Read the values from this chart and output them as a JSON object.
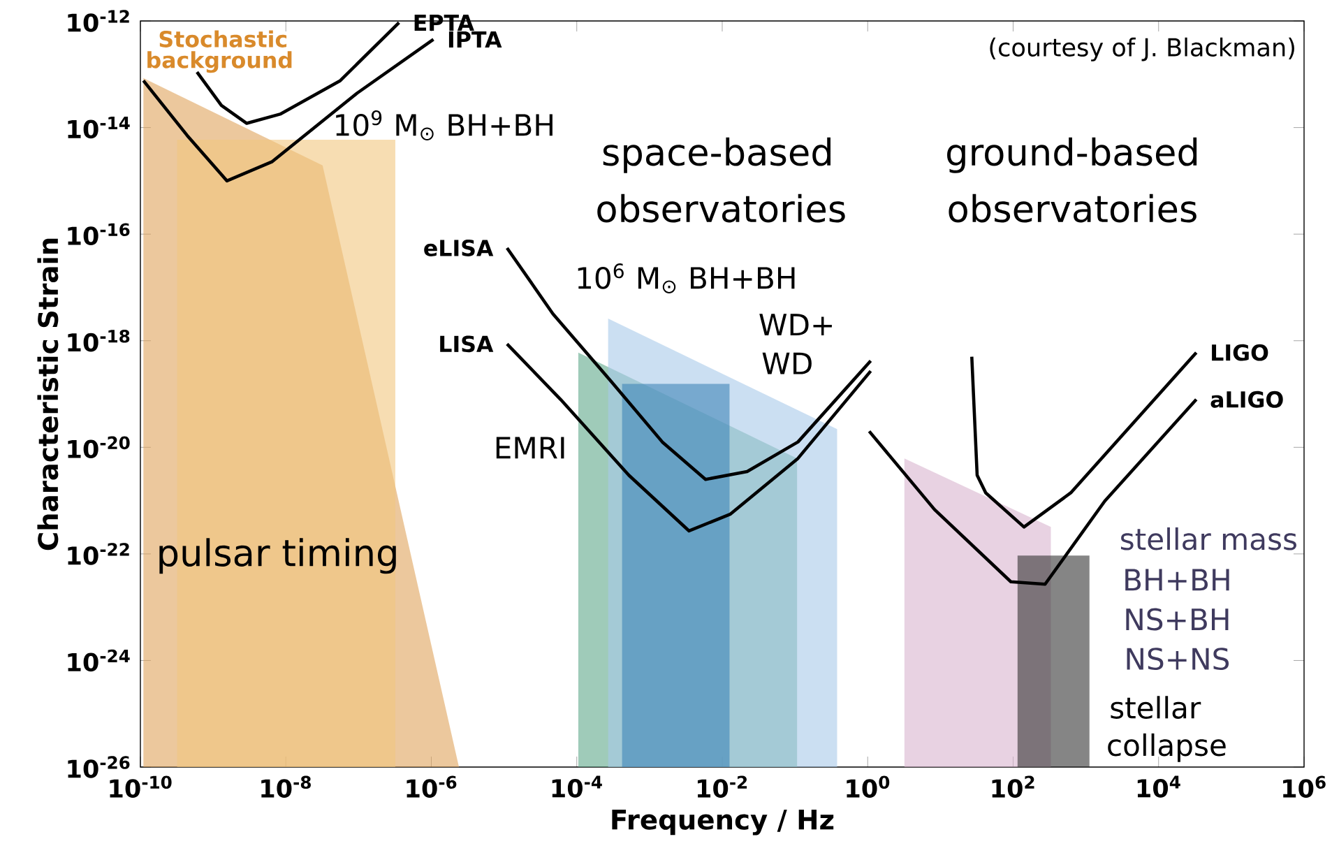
{
  "chart_data": {
    "type": "line",
    "log": "xy",
    "marker": "none",
    "line_style": "solid",
    "xlabel": "Frequency / Hz",
    "ylabel": "Characteristic Strain",
    "xlim": [
      1e-10,
      1000000.0
    ],
    "ylim": [
      1e-26,
      1e-12
    ],
    "xticks": [
      {
        "value": 1e-10,
        "label": "10$^{-10}$"
      },
      {
        "value": 1e-08,
        "label": "10$^{-8}$"
      },
      {
        "value": 1e-06,
        "label": "10$^{-6}$"
      },
      {
        "value": 0.0001,
        "label": "10$^{-4}$"
      },
      {
        "value": 0.01,
        "label": "10$^{-2}$"
      },
      {
        "value": 1,
        "label": "10$^{0}$"
      },
      {
        "value": 100,
        "label": "10$^{2}$"
      },
      {
        "value": 10000,
        "label": "10$^{4}$"
      },
      {
        "value": 1000000,
        "label": "10$^{6}$"
      }
    ],
    "yticks": [
      {
        "value": 1e-26,
        "label": "10$^{-26}$"
      },
      {
        "value": 1e-24,
        "label": "10$^{-24}$"
      },
      {
        "value": 1e-22,
        "label": "10$^{-22}$"
      },
      {
        "value": 1e-20,
        "label": "10$^{-20}$"
      },
      {
        "value": 1e-18,
        "label": "10$^{-18}$"
      },
      {
        "value": 1e-16,
        "label": "10$^{-16}$"
      },
      {
        "value": 1e-14,
        "label": "10$^{-14}$"
      },
      {
        "value": 1e-12,
        "label": "10$^{-12}$"
      }
    ],
    "series": [
      {
        "type": "area",
        "color": "#e0a45c",
        "x": [
          1.1e-10,
          3.2e-08,
          2.4e-06
        ],
        "values": [
          8.5e-14,
          1.95e-15,
          1e-26
        ]
      },
      {
        "type": "area",
        "color": "#f2c77e",
        "x": [
          3.2e-10,
          3.2e-07
        ],
        "values": [
          5.9e-15,
          5.9e-15
        ]
      },
      {
        "type": "area",
        "color": "#5fa88a",
        "x": [
          0.000105,
          0.107
        ],
        "values": [
          6e-19,
          6.2e-21
        ]
      },
      {
        "type": "area",
        "color": "#a9c9ea",
        "x": [
          0.00027,
          0.38
        ],
        "values": [
          2.6e-18,
          2.2e-20
        ]
      },
      {
        "type": "area",
        "color": "#3f86b8",
        "x": [
          0.00042,
          0.0126
        ],
        "values": [
          1.55e-19,
          1.55e-19
        ]
      },
      {
        "type": "area",
        "color": "#d8b4cf",
        "x": [
          3.2,
          330
        ],
        "values": [
          6.2e-21,
          3.2e-22
        ]
      },
      {
        "type": "area",
        "color": "#333333",
        "x": [
          115,
          1120
        ],
        "values": [
          9.3e-23,
          9.3e-23
        ]
      },
      {
        "name": "EPTA",
        "color": "#000000",
        "x": [
          6e-10,
          1.3e-09,
          2.9e-09,
          8.5e-09,
          5.6e-08,
          3.6e-07
        ],
        "values": [
          1.1e-13,
          2.6e-14,
          1.2e-14,
          1.8e-14,
          7.6e-14,
          9.3e-13
        ]
      },
      {
        "name": "IPTA",
        "color": "#000000",
        "x": [
          1.1e-10,
          4.4e-10,
          1.55e-09,
          6.5e-09,
          9.5e-08,
          1.07e-06
        ],
        "values": [
          7.6e-14,
          7.1e-15,
          1e-15,
          2.3e-15,
          4.4e-14,
          4.5e-13
        ]
      },
      {
        "name": "eLISA",
        "color": "#000000",
        "x": [
          1.1e-05,
          4.7e-05,
          0.0003,
          0.0015,
          0.0059,
          0.022,
          0.11,
          1.1
        ],
        "values": [
          5.5e-17,
          3.2e-18,
          1.7e-19,
          1.26e-20,
          2.5e-21,
          3.5e-21,
          1.26e-20,
          4.2e-19
        ]
      },
      {
        "name": "LISA",
        "color": "#000000",
        "x": [
          1.1e-05,
          6e-05,
          0.00052,
          0.0035,
          0.013,
          0.11,
          1.1
        ],
        "values": [
          8.7e-19,
          7.9e-20,
          3e-21,
          2.7e-22,
          5.6e-22,
          6.2e-21,
          2.7e-19
        ]
      },
      {
        "name": "LIGO",
        "color": "#000000",
        "x": [
          27,
          32,
          42,
          141,
          620,
          33000
        ],
        "values": [
          5e-19,
          3e-21,
          1.4e-21,
          3.2e-22,
          1.4e-21,
          6e-19
        ]
      },
      {
        "name": "aLIGO",
        "color": "#000000",
        "x": [
          1.05,
          8.3,
          93,
          275,
          1820,
          33000
        ],
        "values": [
          2e-20,
          6.8e-22,
          3e-23,
          2.7e-23,
          9.8e-22,
          7.9e-20
        ]
      }
    ],
    "annotations": [
      "Stochastic",
      "background",
      "10$^{9}$ M$_{⊙}$ BH+BH",
      "space-based",
      "observatories",
      "ground-based",
      "observatories",
      "10$^{6}$ M$_{⊙}$ BH+BH",
      "WD+",
      "WD",
      "EMRI",
      "pulsar timing",
      "stellar mass",
      "BH+BH",
      "NS+BH",
      "NS+NS",
      "stellar",
      "collapse",
      "(courtesy of J. Blackman)"
    ]
  }
}
